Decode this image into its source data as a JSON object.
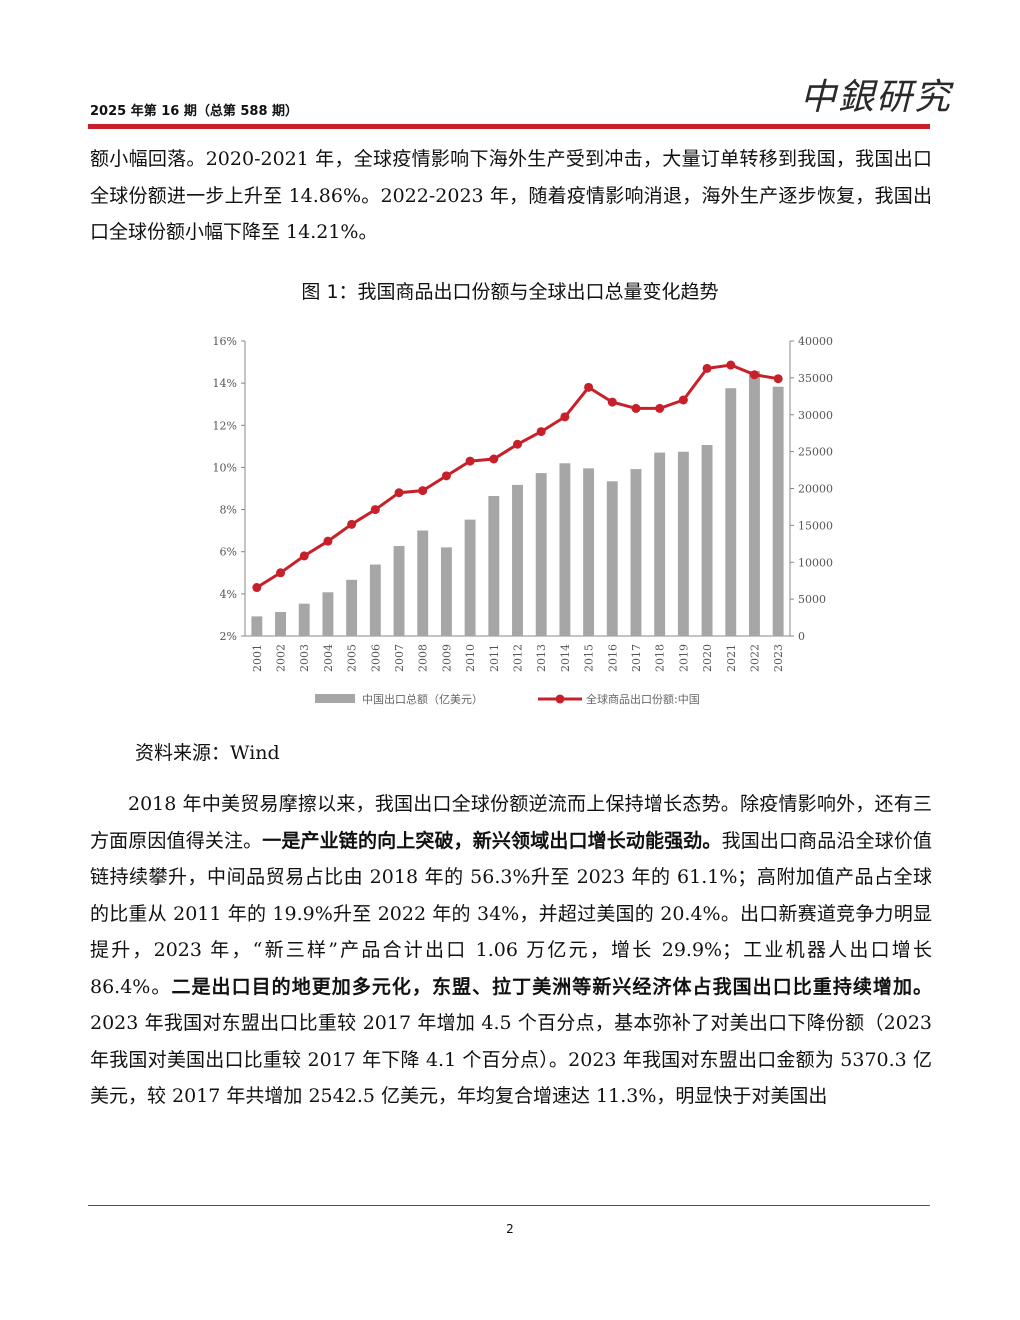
{
  "header": {
    "issue": "2025 年第 16 期（总第 588 期）",
    "logo": "中銀研究"
  },
  "intro_paragraph": "额小幅回落。2020-2021 年，全球疫情影响下海外生产受到冲击，大量订单转移到我国，我国出口全球份额进一步上升至 14.86%。2022-2023 年，随着疫情影响消退，海外生产逐步恢复，我国出口全球份额小幅下降至 14.21%。",
  "figure": {
    "title": "图 1：我国商品出口份额与全球出口总量变化趋势",
    "source": "资料来源：Wind"
  },
  "chart_data": {
    "type": "bar+line",
    "categories": [
      "2001",
      "2002",
      "2003",
      "2004",
      "2005",
      "2006",
      "2007",
      "2008",
      "2009",
      "2010",
      "2011",
      "2012",
      "2013",
      "2014",
      "2015",
      "2016",
      "2017",
      "2018",
      "2019",
      "2020",
      "2021",
      "2022",
      "2023"
    ],
    "series": [
      {
        "name": "中国出口总额（亿美元）",
        "type": "bar",
        "axis": "right",
        "color": "#a6a6a6",
        "values": [
          2661,
          3256,
          4382,
          5933,
          7620,
          9689,
          12200,
          14307,
          12016,
          15778,
          18984,
          20487,
          22090,
          23423,
          22735,
          20976,
          22633,
          24867,
          24985,
          25900,
          33600,
          35900,
          33800
        ]
      },
      {
        "name": "全球商品出口份额:中国",
        "type": "line",
        "axis": "left",
        "color": "#c8202a",
        "values": [
          4.3,
          5.0,
          5.8,
          6.5,
          7.3,
          8.0,
          8.8,
          8.9,
          9.6,
          10.3,
          10.4,
          11.1,
          11.7,
          12.4,
          13.8,
          13.1,
          12.8,
          12.8,
          13.2,
          14.7,
          14.86,
          14.4,
          14.21
        ]
      }
    ],
    "y_left": {
      "min": 2,
      "max": 16,
      "ticks": [
        "16%",
        "14%",
        "12%",
        "10%",
        "8%",
        "6%",
        "4%",
        "2%"
      ]
    },
    "y_right": {
      "min": 0,
      "max": 40000,
      "ticks": [
        "40000",
        "35000",
        "30000",
        "25000",
        "20000",
        "15000",
        "10000",
        "5000",
        "0"
      ]
    },
    "legend_position": "bottom",
    "grid": false
  },
  "paragraphs": {
    "p2_a": "2018 年中美贸易摩擦以来，我国出口全球份额逆流而上保持增长态势。除疫情影响外，还有三方面原因值得关注。",
    "p2_bold1": "一是产业链的向上突破，新兴领域出口增长动能强劲。",
    "p2_b": "我国出口商品沿全球价值链持续攀升，中间品贸易占比由 2018 年的 56.3%升至 2023 年的 61.1%；高附加值产品占全球的比重从 2011 年的 19.9%升至 2022 年的 34%，并超过美国的 20.4%。出口新赛道竞争力明显提升，2023 年，“新三样”产品合计出口 1.06 万亿元，增长 29.9%；工业机器人出口增长 86.4%。",
    "p2_bold2": "二是出口目的地更加多元化，东盟、拉丁美洲等新兴经济体占我国出口比重持续增加。",
    "p2_c": "2023 年我国对东盟出口比重较 2017 年增加 4.5 个百分点，基本弥补了对美出口下降份额（2023 年我国对美国出口比重较 2017 年下降 4.1 个百分点）。2023 年我国对东盟出口金额为 5370.3 亿美元，较 2017 年共增加 2542.5 亿美元，年均复合增速达 11.3%，明显快于对美国出"
  },
  "footer": {
    "page_number": "2"
  }
}
